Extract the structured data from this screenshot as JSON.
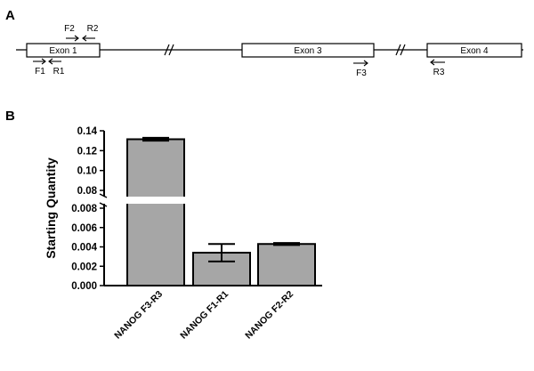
{
  "panels": {
    "a": "A",
    "b": "B"
  },
  "gene_diagram": {
    "exons": [
      "Exon 1",
      "Exon 3",
      "Exon 4"
    ],
    "primers_above": [
      {
        "name": "F2",
        "dir": "right"
      },
      {
        "name": "R2",
        "dir": "left"
      }
    ],
    "primers_below": [
      {
        "name": "F1",
        "dir": "right"
      },
      {
        "name": "R1",
        "dir": "left"
      },
      {
        "name": "F3",
        "dir": "right"
      },
      {
        "name": "R3",
        "dir": "left"
      }
    ]
  },
  "chart_data": {
    "type": "bar",
    "ylabel": "Starting Quantity",
    "categories": [
      "NANOG F3-R3",
      "NANOG F1-R1",
      "NANOG F2-R2"
    ],
    "values": [
      0.1315,
      0.0034,
      0.0043
    ],
    "errors": [
      0.0015,
      0.0009,
      0.0001
    ],
    "bar_color": "#a6a6a6",
    "axis_broken": true,
    "lower_segment": {
      "ylim": [
        0,
        0.008
      ],
      "ticks": [
        "0.000",
        "0.002",
        "0.004",
        "0.006",
        "0.008"
      ],
      "tick_values": [
        0,
        0.002,
        0.004,
        0.006,
        0.008
      ]
    },
    "upper_segment": {
      "ylim": [
        0.08,
        0.14
      ],
      "ticks": [
        "0.08",
        "0.10",
        "0.12",
        "0.14"
      ],
      "tick_values": [
        0.08,
        0.1,
        0.12,
        0.14
      ]
    }
  }
}
